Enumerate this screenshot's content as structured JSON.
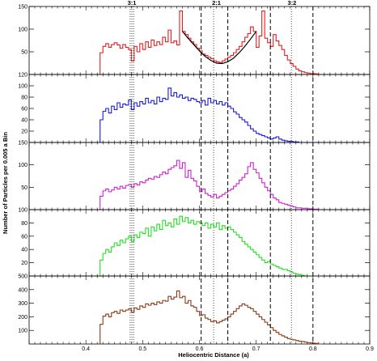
{
  "chart_data": {
    "type": "line",
    "layout": "five vertically stacked step-histogram panels sharing the x axis",
    "xlabel": "Heliocentric Distance (a)",
    "ylabel": "Number of Particles per 0.005 a Bin",
    "xlim": [
      0.3,
      0.9
    ],
    "x_ticks": [
      "0.4",
      "0.5",
      "0.6",
      "0.7",
      "0.8",
      "0.9"
    ],
    "grid": false,
    "resonance_labels": [
      {
        "text": "3:1",
        "x": 0.481
      },
      {
        "text": "2:1",
        "x": 0.63
      },
      {
        "text": "3:2",
        "x": 0.763
      }
    ],
    "reference_lines": [
      {
        "x": 0.478,
        "style": "dotted"
      },
      {
        "x": 0.481,
        "style": "dotted"
      },
      {
        "x": 0.484,
        "style": "dotted"
      },
      {
        "x": 0.603,
        "style": "dashed"
      },
      {
        "x": 0.625,
        "style": "dotted"
      },
      {
        "x": 0.65,
        "style": "dashed"
      },
      {
        "x": 0.725,
        "style": "dashed"
      },
      {
        "x": 0.762,
        "style": "dotted"
      },
      {
        "x": 0.8,
        "style": "dashed"
      }
    ],
    "panels": [
      {
        "color": "#e02020",
        "ylim": [
          0,
          150
        ],
        "y_ticks": [
          50,
          100,
          150
        ],
        "x": [
          0.425,
          0.43,
          0.435,
          0.44,
          0.445,
          0.45,
          0.455,
          0.46,
          0.465,
          0.47,
          0.475,
          0.48,
          0.485,
          0.49,
          0.495,
          0.5,
          0.505,
          0.51,
          0.515,
          0.52,
          0.525,
          0.53,
          0.535,
          0.54,
          0.545,
          0.55,
          0.555,
          0.56,
          0.565,
          0.57,
          0.575,
          0.58,
          0.585,
          0.59,
          0.595,
          0.6,
          0.605,
          0.61,
          0.615,
          0.62,
          0.625,
          0.63,
          0.635,
          0.64,
          0.645,
          0.65,
          0.655,
          0.66,
          0.665,
          0.67,
          0.675,
          0.68,
          0.685,
          0.69,
          0.695,
          0.7,
          0.705,
          0.71,
          0.715,
          0.72,
          0.725,
          0.73,
          0.735,
          0.74,
          0.745,
          0.75,
          0.755,
          0.76,
          0.765,
          0.77,
          0.775,
          0.78,
          0.785,
          0.79,
          0.795,
          0.8,
          0.805,
          0.81
        ],
        "values": [
          48,
          62,
          68,
          60,
          66,
          70,
          65,
          58,
          66,
          60,
          55,
          30,
          62,
          50,
          68,
          55,
          72,
          60,
          76,
          64,
          72,
          66,
          82,
          72,
          98,
          70,
          74,
          65,
          140,
          95,
          88,
          80,
          72,
          66,
          58,
          52,
          45,
          42,
          38,
          35,
          30,
          28,
          26,
          30,
          34,
          38,
          42,
          48,
          55,
          62,
          72,
          82,
          90,
          105,
          95,
          60,
          85,
          140,
          80,
          70,
          62,
          88,
          74,
          64,
          55,
          42,
          32,
          24,
          18,
          12,
          8,
          6,
          4,
          3,
          2,
          2,
          1,
          0
        ],
        "fit_curve": {
          "color": "#000000",
          "x": [
            0.57,
            0.58,
            0.59,
            0.6,
            0.61,
            0.62,
            0.63,
            0.64,
            0.65,
            0.66,
            0.67,
            0.68,
            0.69,
            0.7
          ],
          "values": [
            95,
            80,
            66,
            52,
            40,
            31,
            25,
            24,
            28,
            36,
            48,
            62,
            78,
            95
          ]
        }
      },
      {
        "color": "#1a1ad8",
        "ylim": [
          0,
          120
        ],
        "y_ticks": [
          20,
          40,
          60,
          80,
          100,
          120
        ],
        "x": [
          0.425,
          0.43,
          0.435,
          0.44,
          0.445,
          0.45,
          0.455,
          0.46,
          0.465,
          0.47,
          0.475,
          0.48,
          0.485,
          0.49,
          0.495,
          0.5,
          0.505,
          0.51,
          0.515,
          0.52,
          0.525,
          0.53,
          0.535,
          0.54,
          0.545,
          0.55,
          0.555,
          0.56,
          0.565,
          0.57,
          0.575,
          0.58,
          0.585,
          0.59,
          0.595,
          0.6,
          0.605,
          0.61,
          0.615,
          0.62,
          0.625,
          0.63,
          0.635,
          0.64,
          0.645,
          0.65,
          0.655,
          0.66,
          0.665,
          0.67,
          0.675,
          0.68,
          0.685,
          0.69,
          0.695,
          0.7,
          0.705,
          0.71,
          0.715,
          0.72,
          0.725,
          0.73,
          0.735,
          0.74,
          0.745,
          0.75,
          0.755,
          0.76,
          0.765,
          0.77,
          0.775,
          0.78,
          0.785,
          0.79,
          0.795,
          0.8,
          0.805,
          0.81
        ],
        "values": [
          40,
          55,
          60,
          52,
          64,
          58,
          70,
          62,
          68,
          66,
          75,
          58,
          70,
          64,
          72,
          68,
          78,
          70,
          74,
          68,
          80,
          72,
          78,
          76,
          96,
          82,
          88,
          80,
          84,
          78,
          80,
          74,
          78,
          76,
          72,
          70,
          74,
          66,
          78,
          70,
          74,
          68,
          72,
          66,
          70,
          64,
          60,
          54,
          50,
          44,
          40,
          36,
          30,
          24,
          20,
          16,
          14,
          12,
          10,
          8,
          6,
          8,
          10,
          6,
          4,
          3,
          2,
          2,
          1,
          1,
          0,
          0,
          0,
          0,
          0,
          0,
          0,
          0
        ]
      },
      {
        "color": "#d020d0",
        "ylim": [
          0,
          150
        ],
        "y_ticks": [
          50,
          100,
          150
        ],
        "x": [
          0.425,
          0.43,
          0.435,
          0.44,
          0.445,
          0.45,
          0.455,
          0.46,
          0.465,
          0.47,
          0.475,
          0.48,
          0.485,
          0.49,
          0.495,
          0.5,
          0.505,
          0.51,
          0.515,
          0.52,
          0.525,
          0.53,
          0.535,
          0.54,
          0.545,
          0.55,
          0.555,
          0.56,
          0.565,
          0.57,
          0.575,
          0.58,
          0.585,
          0.59,
          0.595,
          0.6,
          0.605,
          0.61,
          0.615,
          0.62,
          0.625,
          0.63,
          0.635,
          0.64,
          0.645,
          0.65,
          0.655,
          0.66,
          0.665,
          0.67,
          0.675,
          0.68,
          0.685,
          0.69,
          0.695,
          0.7,
          0.705,
          0.71,
          0.715,
          0.72,
          0.725,
          0.73,
          0.735,
          0.74,
          0.745,
          0.75,
          0.755,
          0.76,
          0.765,
          0.77,
          0.775,
          0.78,
          0.785,
          0.79,
          0.795,
          0.8,
          0.805,
          0.81
        ],
        "values": [
          30,
          42,
          46,
          40,
          44,
          50,
          46,
          52,
          48,
          54,
          56,
          50,
          58,
          55,
          62,
          60,
          66,
          70,
          68,
          74,
          72,
          78,
          84,
          80,
          90,
          94,
          98,
          110,
          92,
          105,
          72,
          88,
          70,
          64,
          52,
          40,
          46,
          36,
          32,
          28,
          34,
          26,
          30,
          34,
          38,
          42,
          46,
          52,
          58,
          66,
          72,
          80,
          96,
          105,
          90,
          82,
          70,
          60,
          50,
          42,
          34,
          26,
          22,
          16,
          14,
          12,
          10,
          8,
          6,
          4,
          4,
          3,
          3,
          2,
          2,
          1,
          1,
          0
        ]
      },
      {
        "color": "#20e020",
        "ylim": [
          0,
          100
        ],
        "y_ticks": [
          20,
          40,
          60,
          80,
          100
        ],
        "x": [
          0.425,
          0.43,
          0.435,
          0.44,
          0.445,
          0.45,
          0.455,
          0.46,
          0.465,
          0.47,
          0.475,
          0.48,
          0.485,
          0.49,
          0.495,
          0.5,
          0.505,
          0.51,
          0.515,
          0.52,
          0.525,
          0.53,
          0.535,
          0.54,
          0.545,
          0.55,
          0.555,
          0.56,
          0.565,
          0.57,
          0.575,
          0.58,
          0.585,
          0.59,
          0.595,
          0.6,
          0.605,
          0.61,
          0.615,
          0.62,
          0.625,
          0.63,
          0.635,
          0.64,
          0.645,
          0.65,
          0.655,
          0.66,
          0.665,
          0.67,
          0.675,
          0.68,
          0.685,
          0.69,
          0.695,
          0.7,
          0.705,
          0.71,
          0.715,
          0.72,
          0.725,
          0.73,
          0.735,
          0.74,
          0.745,
          0.75,
          0.755,
          0.76,
          0.765,
          0.77,
          0.775,
          0.78,
          0.785,
          0.79,
          0.795,
          0.8,
          0.805,
          0.81
        ],
        "values": [
          24,
          34,
          40,
          36,
          44,
          50,
          46,
          54,
          50,
          56,
          60,
          52,
          62,
          58,
          66,
          64,
          72,
          60,
          74,
          68,
          78,
          70,
          84,
          76,
          80,
          74,
          86,
          78,
          90,
          82,
          88,
          80,
          84,
          78,
          82,
          80,
          76,
          80,
          72,
          78,
          74,
          80,
          70,
          76,
          72,
          74,
          70,
          66,
          62,
          58,
          52,
          48,
          44,
          40,
          36,
          32,
          28,
          24,
          20,
          22,
          18,
          16,
          14,
          12,
          10,
          10,
          8,
          6,
          4,
          3,
          2,
          1,
          0,
          0,
          0,
          0,
          0,
          0
        ]
      },
      {
        "color": "#8b3a14",
        "ylim": [
          0,
          500
        ],
        "y_ticks": [
          100,
          200,
          300,
          400,
          500
        ],
        "x": [
          0.425,
          0.43,
          0.435,
          0.44,
          0.445,
          0.45,
          0.455,
          0.46,
          0.465,
          0.47,
          0.475,
          0.48,
          0.485,
          0.49,
          0.495,
          0.5,
          0.505,
          0.51,
          0.515,
          0.52,
          0.525,
          0.53,
          0.535,
          0.54,
          0.545,
          0.55,
          0.555,
          0.56,
          0.565,
          0.57,
          0.575,
          0.58,
          0.585,
          0.59,
          0.595,
          0.6,
          0.605,
          0.61,
          0.615,
          0.62,
          0.625,
          0.63,
          0.635,
          0.64,
          0.645,
          0.65,
          0.655,
          0.66,
          0.665,
          0.67,
          0.675,
          0.68,
          0.685,
          0.69,
          0.695,
          0.7,
          0.705,
          0.71,
          0.715,
          0.72,
          0.725,
          0.73,
          0.735,
          0.74,
          0.745,
          0.75,
          0.755,
          0.76,
          0.765,
          0.77,
          0.775,
          0.78,
          0.785,
          0.79,
          0.795,
          0.8,
          0.805,
          0.81
        ],
        "values": [
          145,
          205,
          220,
          200,
          230,
          240,
          225,
          250,
          240,
          250,
          258,
          235,
          265,
          255,
          280,
          270,
          295,
          285,
          300,
          290,
          310,
          300,
          320,
          315,
          350,
          330,
          345,
          390,
          340,
          350,
          300,
          320,
          280,
          270,
          240,
          210,
          215,
          190,
          180,
          165,
          170,
          155,
          165,
          175,
          185,
          200,
          220,
          240,
          260,
          280,
          295,
          285,
          270,
          260,
          240,
          220,
          200,
          180,
          160,
          140,
          120,
          100,
          85,
          70,
          60,
          50,
          40,
          35,
          30,
          25,
          20,
          18,
          14,
          10,
          8,
          6,
          4,
          0
        ]
      }
    ]
  }
}
